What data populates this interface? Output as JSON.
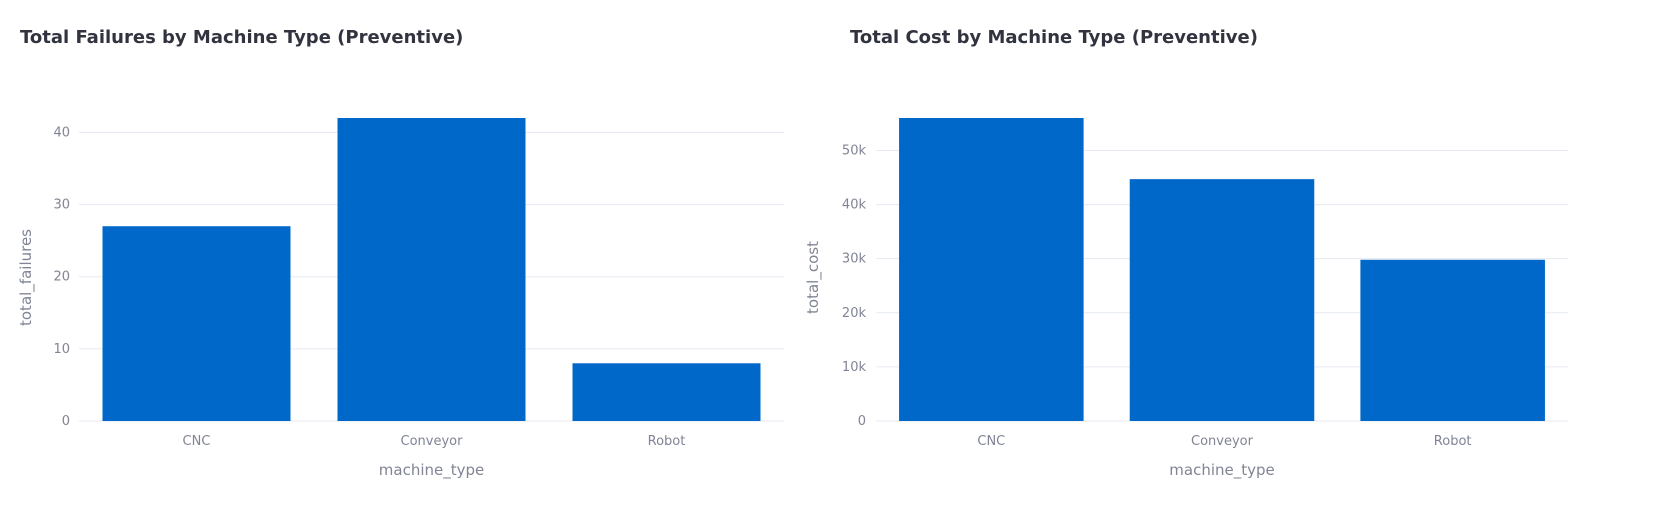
{
  "colors": {
    "bar": "#0068c9",
    "grid": "#e6eaf1",
    "tick_text": "#808495",
    "title_text": "#31333f"
  },
  "chart_data": [
    {
      "type": "bar",
      "title": "Total Failures by Machine Type (Preventive)",
      "xlabel": "machine_type",
      "ylabel": "total_failures",
      "categories": [
        "CNC",
        "Conveyor",
        "Robot"
      ],
      "values": [
        27,
        42,
        8
      ],
      "ylim": [
        0,
        42
      ],
      "yticks": [
        0,
        10,
        20,
        30,
        40
      ],
      "ytick_labels": [
        "0",
        "10",
        "20",
        "30",
        "40"
      ],
      "grid": true,
      "legend": "none"
    },
    {
      "type": "bar",
      "title": "Total Cost by Machine Type (Preventive)",
      "xlabel": "machine_type",
      "ylabel": "total_cost",
      "categories": [
        "CNC",
        "Conveyor",
        "Robot"
      ],
      "values": [
        56000,
        44700,
        29800
      ],
      "ylim": [
        0,
        56000
      ],
      "yticks": [
        0,
        10000,
        20000,
        30000,
        40000,
        50000
      ],
      "ytick_labels": [
        "0",
        "10k",
        "20k",
        "30k",
        "40k",
        "50k"
      ],
      "grid": true,
      "legend": "none"
    }
  ]
}
